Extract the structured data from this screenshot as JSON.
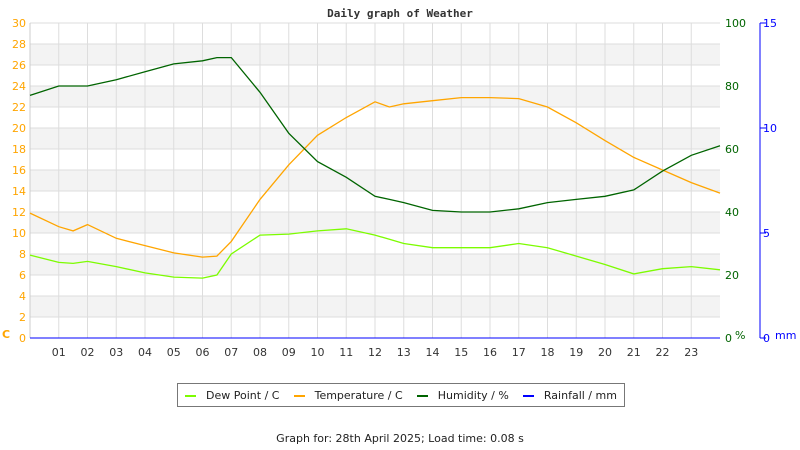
{
  "chart_data": {
    "type": "line",
    "title": "Daily graph of Weather",
    "x_ticks": [
      "01",
      "02",
      "03",
      "04",
      "05",
      "06",
      "07",
      "08",
      "09",
      "10",
      "11",
      "12",
      "13",
      "14",
      "15",
      "16",
      "17",
      "18",
      "19",
      "20",
      "21",
      "22",
      "23"
    ],
    "x_range": [
      0,
      24
    ],
    "left_axis": {
      "label": "C",
      "range": [
        0,
        30
      ],
      "ticks": [
        0,
        2,
        4,
        6,
        8,
        10,
        12,
        14,
        16,
        18,
        20,
        22,
        24,
        26,
        28,
        30
      ],
      "color": "#ffa500"
    },
    "humidity_axis": {
      "label": "%",
      "range": [
        0,
        100
      ],
      "ticks": [
        0,
        20,
        40,
        60,
        80,
        100
      ],
      "color": "#006400"
    },
    "rain_axis": {
      "label": "mm",
      "range": [
        0,
        15
      ],
      "ticks": [
        0,
        5,
        10,
        15
      ],
      "color": "#0000ff"
    },
    "grid": true,
    "legend_position": "bottom",
    "x": [
      0,
      1,
      1.5,
      2,
      3,
      4,
      5,
      6,
      6.5,
      7,
      8,
      9,
      10,
      11,
      12,
      12.5,
      13,
      14,
      15,
      16,
      17,
      18,
      19,
      20,
      21,
      22,
      23,
      24
    ],
    "series": [
      {
        "name": "Dew Point / C",
        "color": "#7cfc00",
        "axis": "left",
        "values": [
          7.9,
          7.2,
          7.1,
          7.3,
          6.8,
          6.2,
          5.8,
          5.7,
          6.0,
          8.0,
          9.8,
          9.9,
          10.2,
          10.4,
          9.8,
          9.4,
          9.0,
          8.6,
          8.6,
          8.6,
          9.0,
          8.6,
          7.8,
          7.0,
          6.1,
          6.6,
          6.8,
          6.5
        ]
      },
      {
        "name": "Temperature / C",
        "color": "#ffa500",
        "axis": "left",
        "values": [
          11.9,
          10.6,
          10.2,
          10.8,
          9.5,
          8.8,
          8.1,
          7.7,
          7.8,
          9.2,
          13.2,
          16.5,
          19.3,
          21.0,
          22.5,
          22.0,
          22.3,
          22.6,
          22.9,
          22.9,
          22.8,
          22.0,
          20.5,
          18.8,
          17.2,
          16.0,
          14.8,
          13.8
        ]
      },
      {
        "name": "Humidity / %",
        "color": "#006400",
        "axis": "humidity",
        "values": [
          77,
          80,
          80,
          80,
          82,
          84.5,
          87,
          88,
          89,
          89,
          78,
          65,
          56,
          51,
          45,
          44,
          43,
          40.5,
          40,
          40,
          41,
          43,
          44,
          45,
          47,
          53,
          58,
          61
        ]
      },
      {
        "name": "Rainfall / mm",
        "color": "#0000ff",
        "axis": "rain",
        "values": [
          0,
          0,
          0,
          0,
          0,
          0,
          0,
          0,
          0,
          0,
          0,
          0,
          0,
          0,
          0,
          0,
          0,
          0,
          0,
          0,
          0,
          0,
          0,
          0,
          0,
          0,
          0,
          0
        ]
      }
    ]
  },
  "footer": "Graph for: 28th April 2025; Load time: 0.08 s"
}
